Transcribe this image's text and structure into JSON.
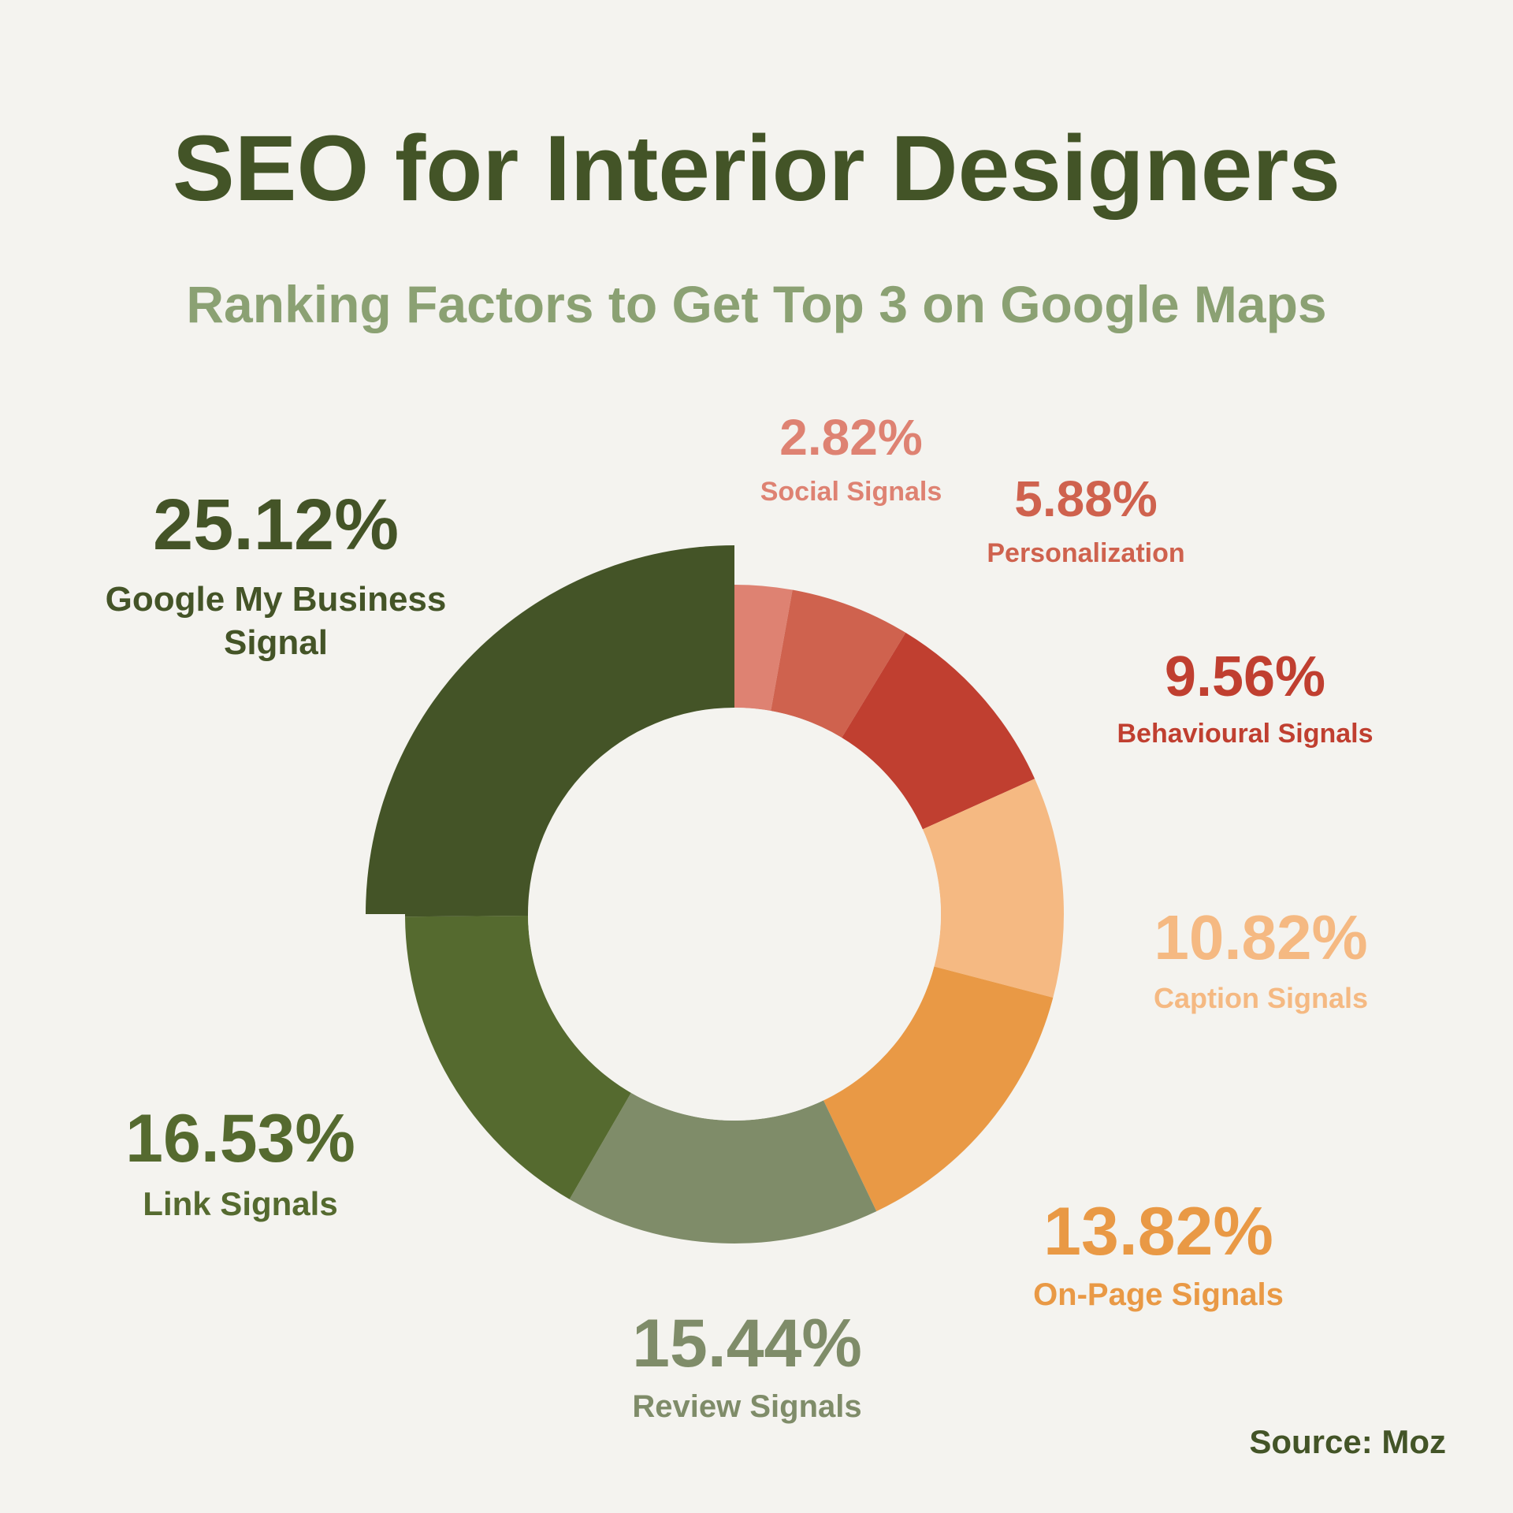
{
  "header": {
    "title": "SEO for Interior Designers",
    "subtitle": "Ranking Factors to Get Top 3 on Google Maps"
  },
  "source": "Source: Moz",
  "chart_data": {
    "type": "pie",
    "variant": "donut",
    "title": "SEO for Interior Designers",
    "subtitle": "Ranking Factors to Get Top 3 on Google Maps",
    "start": "12 o'clock, clockwise",
    "slices": [
      {
        "name": "Social Signals",
        "value": 2.82,
        "label": "2.82%",
        "color": "#de8272",
        "label_color": "#de8272"
      },
      {
        "name": "Personalization",
        "value": 5.88,
        "label": "5.88%",
        "color": "#cf624e",
        "label_color": "#cf624e"
      },
      {
        "name": "Behavioural Signals",
        "value": 9.56,
        "label": "9.56%",
        "color": "#c03f30",
        "label_color": "#c03f30"
      },
      {
        "name": "Caption Signals",
        "value": 10.82,
        "label": "10.82%",
        "color": "#f5b982",
        "label_color": "#f5b982"
      },
      {
        "name": "On-Page Signals",
        "value": 13.82,
        "label": "13.82%",
        "color": "#e99945",
        "label_color": "#e99945"
      },
      {
        "name": "Review Signals",
        "value": 15.44,
        "label": "15.44%",
        "color": "#7f8c69",
        "label_color": "#7f8c69"
      },
      {
        "name": "Link Signals",
        "value": 16.53,
        "label": "16.53%",
        "color": "#556a2f",
        "label_color": "#556a2f"
      },
      {
        "name": "Google My Business Signal",
        "value": 25.12,
        "label": "25.12%",
        "color": "#445427",
        "label_color": "#445427",
        "highlighted": true
      }
    ]
  }
}
